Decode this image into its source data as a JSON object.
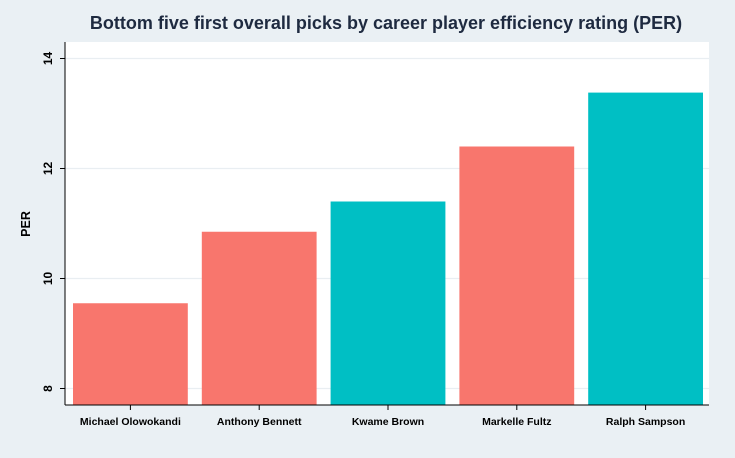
{
  "chart_data": {
    "type": "bar",
    "title": "Bottom five first overall picks by career player efficiency rating (PER)",
    "xlabel": "",
    "ylabel": "PER",
    "categories": [
      "Michael Olowokandi",
      "Anthony Bennett",
      "Kwame Brown",
      "Markelle Fultz",
      "Ralph Sampson"
    ],
    "values": [
      9.55,
      10.85,
      11.4,
      12.4,
      13.38
    ],
    "bar_colors": [
      "#f8766d",
      "#f8766d",
      "#00bfc4",
      "#f8766d",
      "#00bfc4"
    ],
    "yticks": [
      8,
      10,
      12,
      14
    ],
    "ylim": [
      7.7,
      14.3
    ],
    "grid": true,
    "legend": "none"
  },
  "colors": {
    "background": "#eaf0f4",
    "plot_background": "#ffffff",
    "gridline": "#e9eef2",
    "title": "#1e2a40"
  }
}
